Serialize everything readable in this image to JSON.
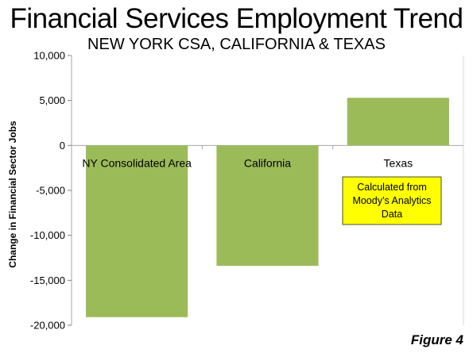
{
  "header": {
    "title": "Financial Services Employment Trend",
    "subtitle": "NEW YORK CSA, CALIFORNIA & TEXAS"
  },
  "figure_label": "Figure 4",
  "colors": {
    "bar": "#9bbb59",
    "note_bg": "#ffff00",
    "grid": "#c0c0c0"
  },
  "chart_data": {
    "type": "bar",
    "title": "Financial Services Employment Trend",
    "subtitle": "NEW YORK CSA, CALIFORNIA & TEXAS",
    "xlabel": "",
    "ylabel": "Change in Financial Sector Jobs",
    "categories": [
      "NY Consolidated Area",
      "California",
      "Texas"
    ],
    "values": [
      -19100,
      -13400,
      5300
    ],
    "ylim": [
      -20000,
      10000
    ],
    "yticks": [
      10000,
      5000,
      0,
      -5000,
      -10000,
      -15000,
      -20000
    ],
    "ytick_labels": [
      "10,000",
      "5,000",
      "0",
      "-5,000",
      "-10,000",
      "-15,000",
      "-20,000"
    ],
    "grid": false,
    "legend": "none",
    "annotation": "Calculated from Moody's Analytics Data"
  }
}
